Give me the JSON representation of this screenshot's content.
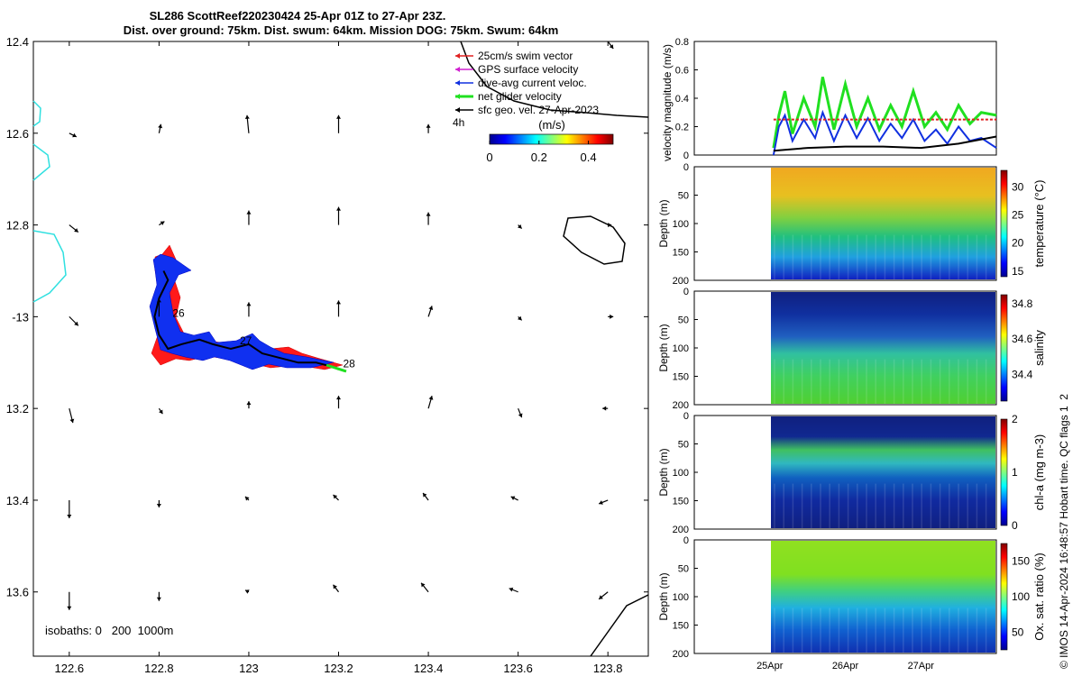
{
  "header": {
    "line1": "SL286 ScottReef220230424 25-Apr 01Z to 27-Apr 23Z.",
    "line2": "Dist. over ground: 75km. Dist. swum: 64km. Mission DOG: 75km. Swum: 64km"
  },
  "credit": "© IMOS 14-Apr-2024 16:48:57 Hobart time. QC flags 1  2",
  "chart_data": [
    {
      "id": "map",
      "type": "scatter",
      "xlim": [
        122.52,
        123.89
      ],
      "ylim": [
        -13.74,
        -12.4
      ],
      "x_ticks": [
        122.6,
        122.8,
        123,
        123.2,
        123.4,
        123.6,
        123.8
      ],
      "x_tick_labels": [
        "122.6",
        "122.8",
        "123",
        "123.2",
        "123.4",
        "123.6",
        "123.8"
      ],
      "y_ticks": [
        -12.4,
        -12.6,
        -12.8,
        -13.0,
        -13.2,
        -13.4,
        -13.6
      ],
      "y_tick_labels": [
        "12.4",
        "12.6",
        "12.8",
        "-13",
        "13.2",
        "13.4",
        "13.6"
      ],
      "isobaths_label": "isobaths: 0   200  1000m",
      "legend": [
        {
          "label": "25cm/s swim vector",
          "color": "#e02020"
        },
        {
          "label": "GPS surface velocity",
          "color": "#d020d0"
        },
        {
          "label": "dive-avg current veloc.",
          "color": "#1030e0"
        },
        {
          "label": "net glider velocity",
          "color": "#20e020"
        },
        {
          "label": "sfc geo. vel. 27-Apr-2023",
          "color": "#000000"
        }
      ],
      "time_label": "4h",
      "colorbar": {
        "title": "(m/s)",
        "ticks": [
          "0",
          "0.2",
          "0.4"
        ],
        "range": [
          0,
          0.5
        ]
      },
      "day_labels": [
        {
          "text": "26",
          "x": 122.83,
          "y": -13.0
        },
        {
          "text": "27",
          "x": 122.98,
          "y": -13.06
        },
        {
          "text": "28",
          "x": 123.21,
          "y": -13.11
        }
      ],
      "track": [
        [
          122.81,
          -12.9
        ],
        [
          122.82,
          -12.92
        ],
        [
          122.8,
          -12.96
        ],
        [
          122.79,
          -13.0
        ],
        [
          122.8,
          -13.04
        ],
        [
          122.82,
          -13.07
        ],
        [
          122.85,
          -13.06
        ],
        [
          122.89,
          -13.05
        ],
        [
          122.92,
          -13.06
        ],
        [
          122.96,
          -13.07
        ],
        [
          123.0,
          -13.06
        ],
        [
          123.03,
          -13.08
        ],
        [
          123.07,
          -13.09
        ],
        [
          123.11,
          -13.1
        ],
        [
          123.15,
          -13.1
        ],
        [
          123.19,
          -13.11
        ],
        [
          123.2,
          -13.115
        ]
      ],
      "vectors_u_v": [
        {
          "y": -12.4,
          "x": [
            123.8
          ],
          "u": [
            0.006
          ],
          "v": [
            -0.008
          ]
        },
        {
          "y": -12.6,
          "x": [
            122.6,
            122.8,
            123.0,
            123.2,
            123.4,
            123.6,
            123.8
          ],
          "u": [
            0.008,
            0.002,
            -0.002,
            0.0,
            0.0,
            0.0,
            0.0
          ],
          "v": [
            -0.004,
            0.01,
            0.02,
            0.02,
            0.01,
            0.0,
            0.0
          ]
        },
        {
          "y": -12.8,
          "x": [
            122.6,
            122.8,
            123.0,
            123.2,
            123.4,
            123.6,
            123.8
          ],
          "u": [
            0.01,
            0.006,
            0.0,
            0.0,
            0.0,
            0.004,
            0.004
          ],
          "v": [
            -0.008,
            0.004,
            0.016,
            0.02,
            0.014,
            -0.004,
            0.0
          ]
        },
        {
          "y": -13.0,
          "x": [
            122.6,
            122.8,
            123.0,
            123.2,
            123.4,
            123.6,
            123.8
          ],
          "u": [
            0.01,
            0.0,
            0.0,
            0.0,
            0.004,
            0.004,
            0.006
          ],
          "v": [
            -0.01,
            0.02,
            0.016,
            0.018,
            0.012,
            -0.004,
            0.0
          ]
        },
        {
          "y": -13.2,
          "x": [
            122.6,
            122.8,
            123.0,
            123.2,
            123.4,
            123.6,
            123.8
          ],
          "u": [
            0.004,
            0.004,
            0.0,
            0.0,
            0.004,
            0.004,
            -0.006
          ],
          "v": [
            -0.016,
            -0.006,
            0.008,
            0.014,
            0.014,
            -0.01,
            0.0
          ]
        },
        {
          "y": -13.4,
          "x": [
            122.6,
            122.8,
            123.0,
            123.2,
            123.4,
            123.6,
            123.8
          ],
          "u": [
            0.0,
            0.0,
            -0.004,
            -0.006,
            -0.006,
            -0.008,
            -0.01
          ],
          "v": [
            -0.02,
            -0.008,
            0.004,
            0.006,
            0.008,
            0.004,
            -0.004
          ]
        },
        {
          "y": -13.6,
          "x": [
            122.6,
            122.8,
            123.0,
            123.2,
            123.4,
            123.6,
            123.8
          ],
          "u": [
            0.0,
            0.0,
            -0.004,
            -0.006,
            -0.008,
            -0.01,
            -0.01
          ],
          "v": [
            -0.02,
            -0.01,
            0.002,
            0.008,
            0.01,
            0.004,
            -0.008
          ]
        }
      ]
    },
    {
      "id": "velocity",
      "type": "line",
      "ylabel": "velocity magnitude (m/s)",
      "ylim": [
        0,
        0.8
      ],
      "y_ticks": [
        0,
        0.2,
        0.4,
        0.6,
        0.8
      ],
      "y_tick_labels": [
        "0",
        "0.2",
        "0.4",
        "0.6",
        "0.8"
      ],
      "xlim": [
        0,
        4
      ],
      "x_ticks": [
        1,
        2,
        3
      ],
      "x_tick_labels": [
        "25Apr",
        "26Apr",
        "27Apr"
      ],
      "series": [
        {
          "color": "#20e020",
          "x": [
            1.05,
            1.12,
            1.2,
            1.3,
            1.45,
            1.6,
            1.7,
            1.85,
            2.0,
            2.15,
            2.3,
            2.45,
            2.6,
            2.75,
            2.9,
            3.05,
            3.2,
            3.35,
            3.5,
            3.65,
            3.8,
            4.0
          ],
          "values": [
            0.05,
            0.28,
            0.45,
            0.15,
            0.4,
            0.2,
            0.55,
            0.18,
            0.5,
            0.2,
            0.4,
            0.18,
            0.35,
            0.2,
            0.45,
            0.2,
            0.3,
            0.18,
            0.35,
            0.22,
            0.3,
            0.28
          ]
        },
        {
          "color": "#1030e0",
          "x": [
            1.05,
            1.12,
            1.2,
            1.3,
            1.45,
            1.6,
            1.7,
            1.85,
            2.0,
            2.15,
            2.3,
            2.45,
            2.6,
            2.75,
            2.9,
            3.05,
            3.2,
            3.35,
            3.5,
            3.65,
            3.8,
            4.0
          ],
          "values": [
            0.0,
            0.2,
            0.28,
            0.1,
            0.25,
            0.12,
            0.3,
            0.1,
            0.28,
            0.12,
            0.26,
            0.1,
            0.22,
            0.12,
            0.25,
            0.1,
            0.18,
            0.08,
            0.2,
            0.1,
            0.12,
            0.05
          ]
        },
        {
          "color": "#e02020",
          "x": [
            1.05,
            4.0
          ],
          "values": [
            0.25,
            0.25
          ]
        },
        {
          "color": "#000000",
          "x": [
            1.05,
            1.5,
            2.0,
            2.5,
            3.0,
            3.5,
            4.0
          ],
          "values": [
            0.03,
            0.05,
            0.06,
            0.06,
            0.05,
            0.08,
            0.13
          ]
        }
      ]
    },
    {
      "id": "temperature",
      "type": "heatmap",
      "ylabel": "Depth (m)",
      "ylim": [
        200,
        0
      ],
      "y_ticks": [
        0,
        50,
        100,
        150,
        200
      ],
      "y_tick_labels": [
        "0",
        "50",
        "100",
        "150",
        "200"
      ],
      "cbar_label": "temperature (°C)",
      "cbar_ticks": [
        "30",
        "25",
        "20",
        "15"
      ],
      "cbar_range": [
        14,
        33
      ]
    },
    {
      "id": "salinity",
      "type": "heatmap",
      "ylabel": "Depth (m)",
      "ylim": [
        200,
        0
      ],
      "y_ticks": [
        0,
        50,
        100,
        150,
        200
      ],
      "y_tick_labels": [
        "0",
        "50",
        "100",
        "150",
        "200"
      ],
      "cbar_label": "salinity",
      "cbar_ticks": [
        "34.8",
        "34.6",
        "34.4"
      ],
      "cbar_range": [
        34.25,
        34.85
      ]
    },
    {
      "id": "chla",
      "type": "heatmap",
      "ylabel": "Depth (m)",
      "ylim": [
        200,
        0
      ],
      "y_ticks": [
        0,
        50,
        100,
        150,
        200
      ],
      "y_tick_labels": [
        "0",
        "50",
        "100",
        "150",
        "200"
      ],
      "cbar_label": "chl-a (mg m-3)",
      "cbar_ticks": [
        "2",
        "1",
        "0"
      ],
      "cbar_range": [
        0,
        2
      ]
    },
    {
      "id": "oxygen",
      "type": "heatmap",
      "ylabel": "Depth (m)",
      "ylim": [
        200,
        0
      ],
      "y_ticks": [
        0,
        50,
        100,
        150,
        200
      ],
      "y_tick_labels": [
        "0",
        "50",
        "100",
        "150",
        "200"
      ],
      "cbar_label": "Ox. sat. ratio (%)",
      "cbar_ticks": [
        "150",
        "100",
        "50"
      ],
      "cbar_range": [
        25,
        175
      ]
    }
  ]
}
